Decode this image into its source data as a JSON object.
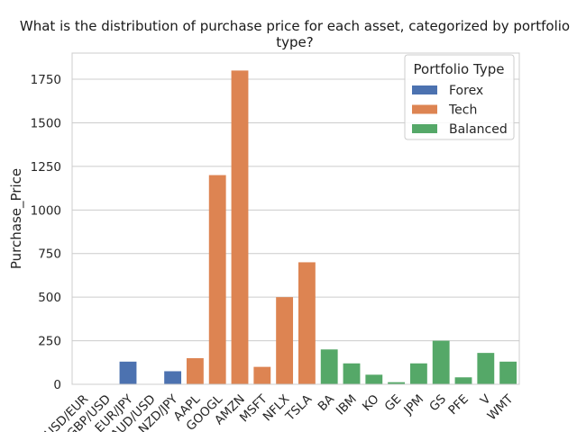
{
  "chart_data": {
    "type": "bar",
    "title_lines": [
      "What is the distribution of purchase price for each asset, categorized by portfolio",
      "type?"
    ],
    "ylabel": "Purchase_Price",
    "xlabel": "",
    "ylim": [
      0,
      1900
    ],
    "yticks": [
      0,
      250,
      500,
      750,
      1000,
      1250,
      1500,
      1750
    ],
    "grid": "horizontal",
    "legend": {
      "title": "Portfolio Type",
      "position": "top-right",
      "entries": [
        {
          "name": "Forex",
          "color": "#4c72b0"
        },
        {
          "name": "Tech",
          "color": "#dd8452"
        },
        {
          "name": "Balanced",
          "color": "#55a868"
        }
      ]
    },
    "categories": [
      "USD/EUR",
      "GBP/USD",
      "EUR/JPY",
      "AUD/USD",
      "NZD/JPY",
      "AAPL",
      "GOOGL",
      "AMZN",
      "MSFT",
      "NFLX",
      "TSLA",
      "BA",
      "IBM",
      "KO",
      "GE",
      "JPM",
      "GS",
      "PFE",
      "V",
      "WMT"
    ],
    "values": [
      1.1,
      1.3,
      130,
      0.7,
      75,
      150,
      1200,
      1800,
      100,
      500,
      700,
      200,
      120,
      55,
      12,
      120,
      250,
      40,
      180,
      130
    ],
    "groups": [
      "Forex",
      "Forex",
      "Forex",
      "Forex",
      "Forex",
      "Tech",
      "Tech",
      "Tech",
      "Tech",
      "Tech",
      "Tech",
      "Balanced",
      "Balanced",
      "Balanced",
      "Balanced",
      "Balanced",
      "Balanced",
      "Balanced",
      "Balanced",
      "Balanced"
    ]
  }
}
